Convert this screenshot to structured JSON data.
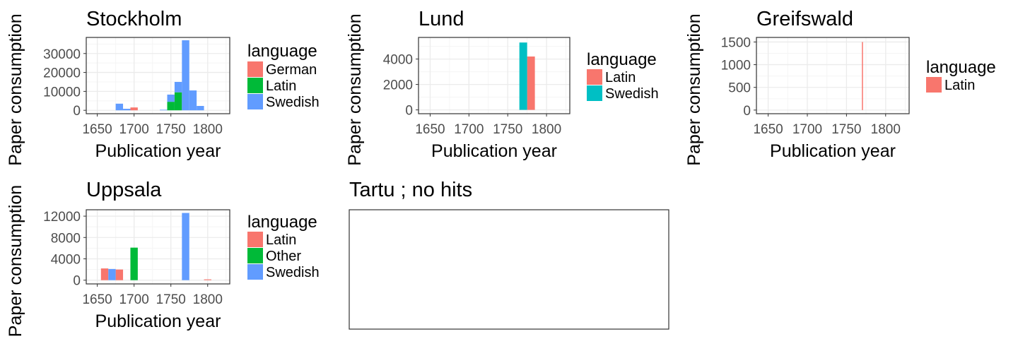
{
  "colors": {
    "German": "#F8766D",
    "Latin_red": "#F8766D",
    "Latin_green": "#00BA38",
    "Latin_single": "#F8766D",
    "Swedish_blue": "#619CFF",
    "Swedish_teal": "#00BFC4",
    "Other": "#00BA38",
    "grid_major": "#ebebeb",
    "grid_minor": "#f5f5f5",
    "panel_border": "#333333"
  },
  "chart_data": [
    {
      "type": "bar",
      "stacked": true,
      "title": "Stockholm",
      "xlabel": "Publication year",
      "ylabel": "Paper consumption",
      "xlim": [
        1635,
        1830
      ],
      "ylim": [
        -1800,
        38500
      ],
      "x_ticks": [
        "1650",
        "1700",
        "1750",
        "1800"
      ],
      "y_ticks": [
        "0",
        "10000",
        "20000",
        "30000"
      ],
      "legend_title": "language",
      "legend": [
        "German",
        "Latin",
        "Swedish"
      ],
      "bin_width": 10,
      "series": [
        {
          "name": "German",
          "color": "#F8766D",
          "values": [
            [
              1700,
              1500
            ]
          ]
        },
        {
          "name": "Latin",
          "color": "#00BA38",
          "values": [
            [
              1750,
              4500
            ],
            [
              1760,
              9500
            ]
          ]
        },
        {
          "name": "Swedish",
          "color": "#619CFF",
          "values": [
            [
              1680,
              3500
            ],
            [
              1690,
              800
            ],
            [
              1750,
              3800
            ],
            [
              1740,
              300
            ],
            [
              1760,
              5500
            ],
            [
              1770,
              37000
            ],
            [
              1780,
              10500
            ],
            [
              1790,
              2300
            ]
          ]
        }
      ]
    },
    {
      "type": "bar",
      "stacked": true,
      "title": "Lund",
      "xlabel": "Publication year",
      "ylabel": "Paper consumption",
      "xlim": [
        1635,
        1830
      ],
      "ylim": [
        -300,
        5700
      ],
      "x_ticks": [
        "1650",
        "1700",
        "1750",
        "1800"
      ],
      "y_ticks": [
        "0",
        "2000",
        "4000"
      ],
      "legend_title": "language",
      "legend": [
        "Latin",
        "Swedish"
      ],
      "bin_width": 10,
      "series": [
        {
          "name": "Latin",
          "color": "#F8766D",
          "values": [
            [
              1780,
              4200
            ]
          ]
        },
        {
          "name": "Swedish",
          "color": "#00BFC4",
          "values": [
            [
              1770,
              5300
            ]
          ]
        }
      ]
    },
    {
      "type": "bar",
      "stacked": true,
      "title": "Greifswald",
      "xlabel": "Publication year",
      "ylabel": "Paper consumption",
      "xlim": [
        1635,
        1830
      ],
      "ylim": [
        -80,
        1600
      ],
      "x_ticks": [
        "1650",
        "1700",
        "1750",
        "1800"
      ],
      "y_ticks": [
        "0",
        "500",
        "1000",
        "1500"
      ],
      "legend_title": "language",
      "legend": [
        "Latin"
      ],
      "bin_width": 0.6,
      "series": [
        {
          "name": "Latin",
          "color": "#F8766D",
          "values": [
            [
              1770,
              1500
            ]
          ]
        }
      ]
    },
    {
      "type": "bar",
      "stacked": false,
      "title": "Uppsala",
      "xlabel": "Publication year",
      "ylabel": "Paper consumption",
      "xlim": [
        1635,
        1830
      ],
      "ylim": [
        -700,
        13200
      ],
      "x_ticks": [
        "1650",
        "1700",
        "1750",
        "1800"
      ],
      "y_ticks": [
        "0",
        "4000",
        "8000",
        "12000"
      ],
      "legend_title": "language",
      "legend": [
        "Latin",
        "Other",
        "Swedish"
      ],
      "bin_width": 10,
      "series": [
        {
          "name": "Latin",
          "color": "#F8766D",
          "values": [
            [
              1660,
              2200
            ],
            [
              1680,
              2000
            ],
            [
              1800,
              150
            ]
          ]
        },
        {
          "name": "Other",
          "color": "#00BA38",
          "values": [
            [
              1700,
              6100
            ]
          ]
        },
        {
          "name": "Swedish",
          "color": "#619CFF",
          "values": [
            [
              1670,
              2100
            ],
            [
              1770,
              12600
            ]
          ]
        }
      ]
    },
    {
      "type": "empty",
      "title": "Tartu ; no hits"
    }
  ]
}
